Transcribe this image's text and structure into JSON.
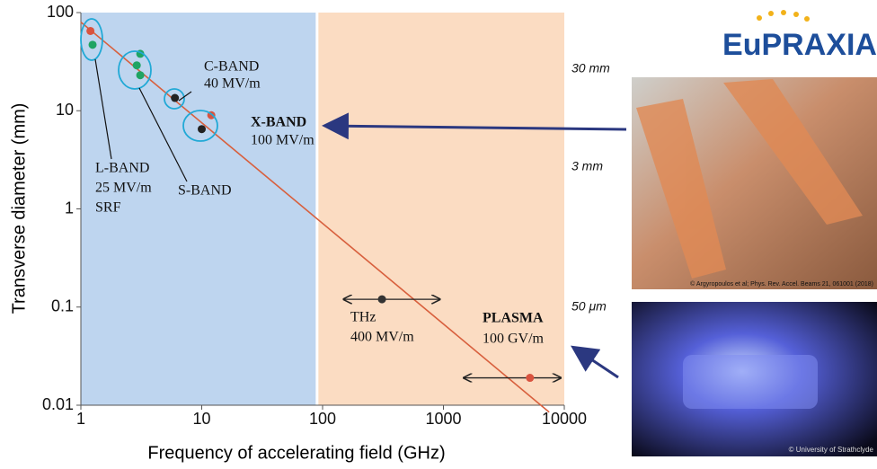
{
  "chart_data": {
    "type": "scatter",
    "x_label": "Frequency of accelerating field (GHz)",
    "y_label": "Transverse diameter (mm)",
    "x_scale": "log",
    "y_scale": "log",
    "xlim": [
      1,
      10000
    ],
    "ylim": [
      0.01,
      100
    ],
    "xticks": [
      1,
      10,
      100,
      1000,
      10000
    ],
    "yticks": [
      0.01,
      0.1,
      1,
      10,
      100
    ],
    "regions": [
      {
        "x": [
          1,
          90
        ],
        "color": "#bed5ef"
      },
      {
        "x": [
          90,
          10000
        ],
        "color": "#fbdcc2"
      }
    ],
    "trend_line": {
      "x": [
        1,
        7500
      ],
      "values": [
        80,
        0.0085
      ],
      "color": "#d8603e"
    },
    "points": {
      "x": [
        1.2,
        1.25,
        3.1,
        2.9,
        3.1,
        6,
        12,
        10,
        310,
        5200
      ],
      "values": [
        65,
        47,
        38,
        29,
        23,
        13.5,
        9,
        6.5,
        0.12,
        0.019
      ],
      "colors": [
        "#d9533f",
        "#1fa463",
        "#1fa463",
        "#1fa463",
        "#1fa463",
        "#222222",
        "#d9533f",
        "#222222",
        "#333333",
        "#d9533f"
      ],
      "xerr_low": [
        null,
        null,
        null,
        null,
        null,
        null,
        null,
        null,
        150,
        1480
      ],
      "xerr_high": [
        null,
        null,
        null,
        null,
        null,
        null,
        null,
        null,
        930,
        9300
      ]
    },
    "annotations": {
      "c_band": [
        "C-BAND",
        "40 MV/m"
      ],
      "x_band": [
        "X-BAND",
        "100 MV/m"
      ],
      "l_band": [
        "L-BAND",
        "25 MV/m",
        "SRF"
      ],
      "s_band": [
        "S-BAND"
      ],
      "thz": [
        "THz",
        "400 MV/m"
      ],
      "plasma": [
        "PLASMA",
        "100 GV/m"
      ],
      "right_scale": [
        "30 mm",
        "3 mm",
        "50 μm"
      ]
    }
  },
  "logo": "EuPRAXIA",
  "photo_credits": [
    "© Argyropoulos et al; Phys. Rev. Accel. Beams 21, 061001 (2018)",
    "© University of Strathclyde"
  ]
}
